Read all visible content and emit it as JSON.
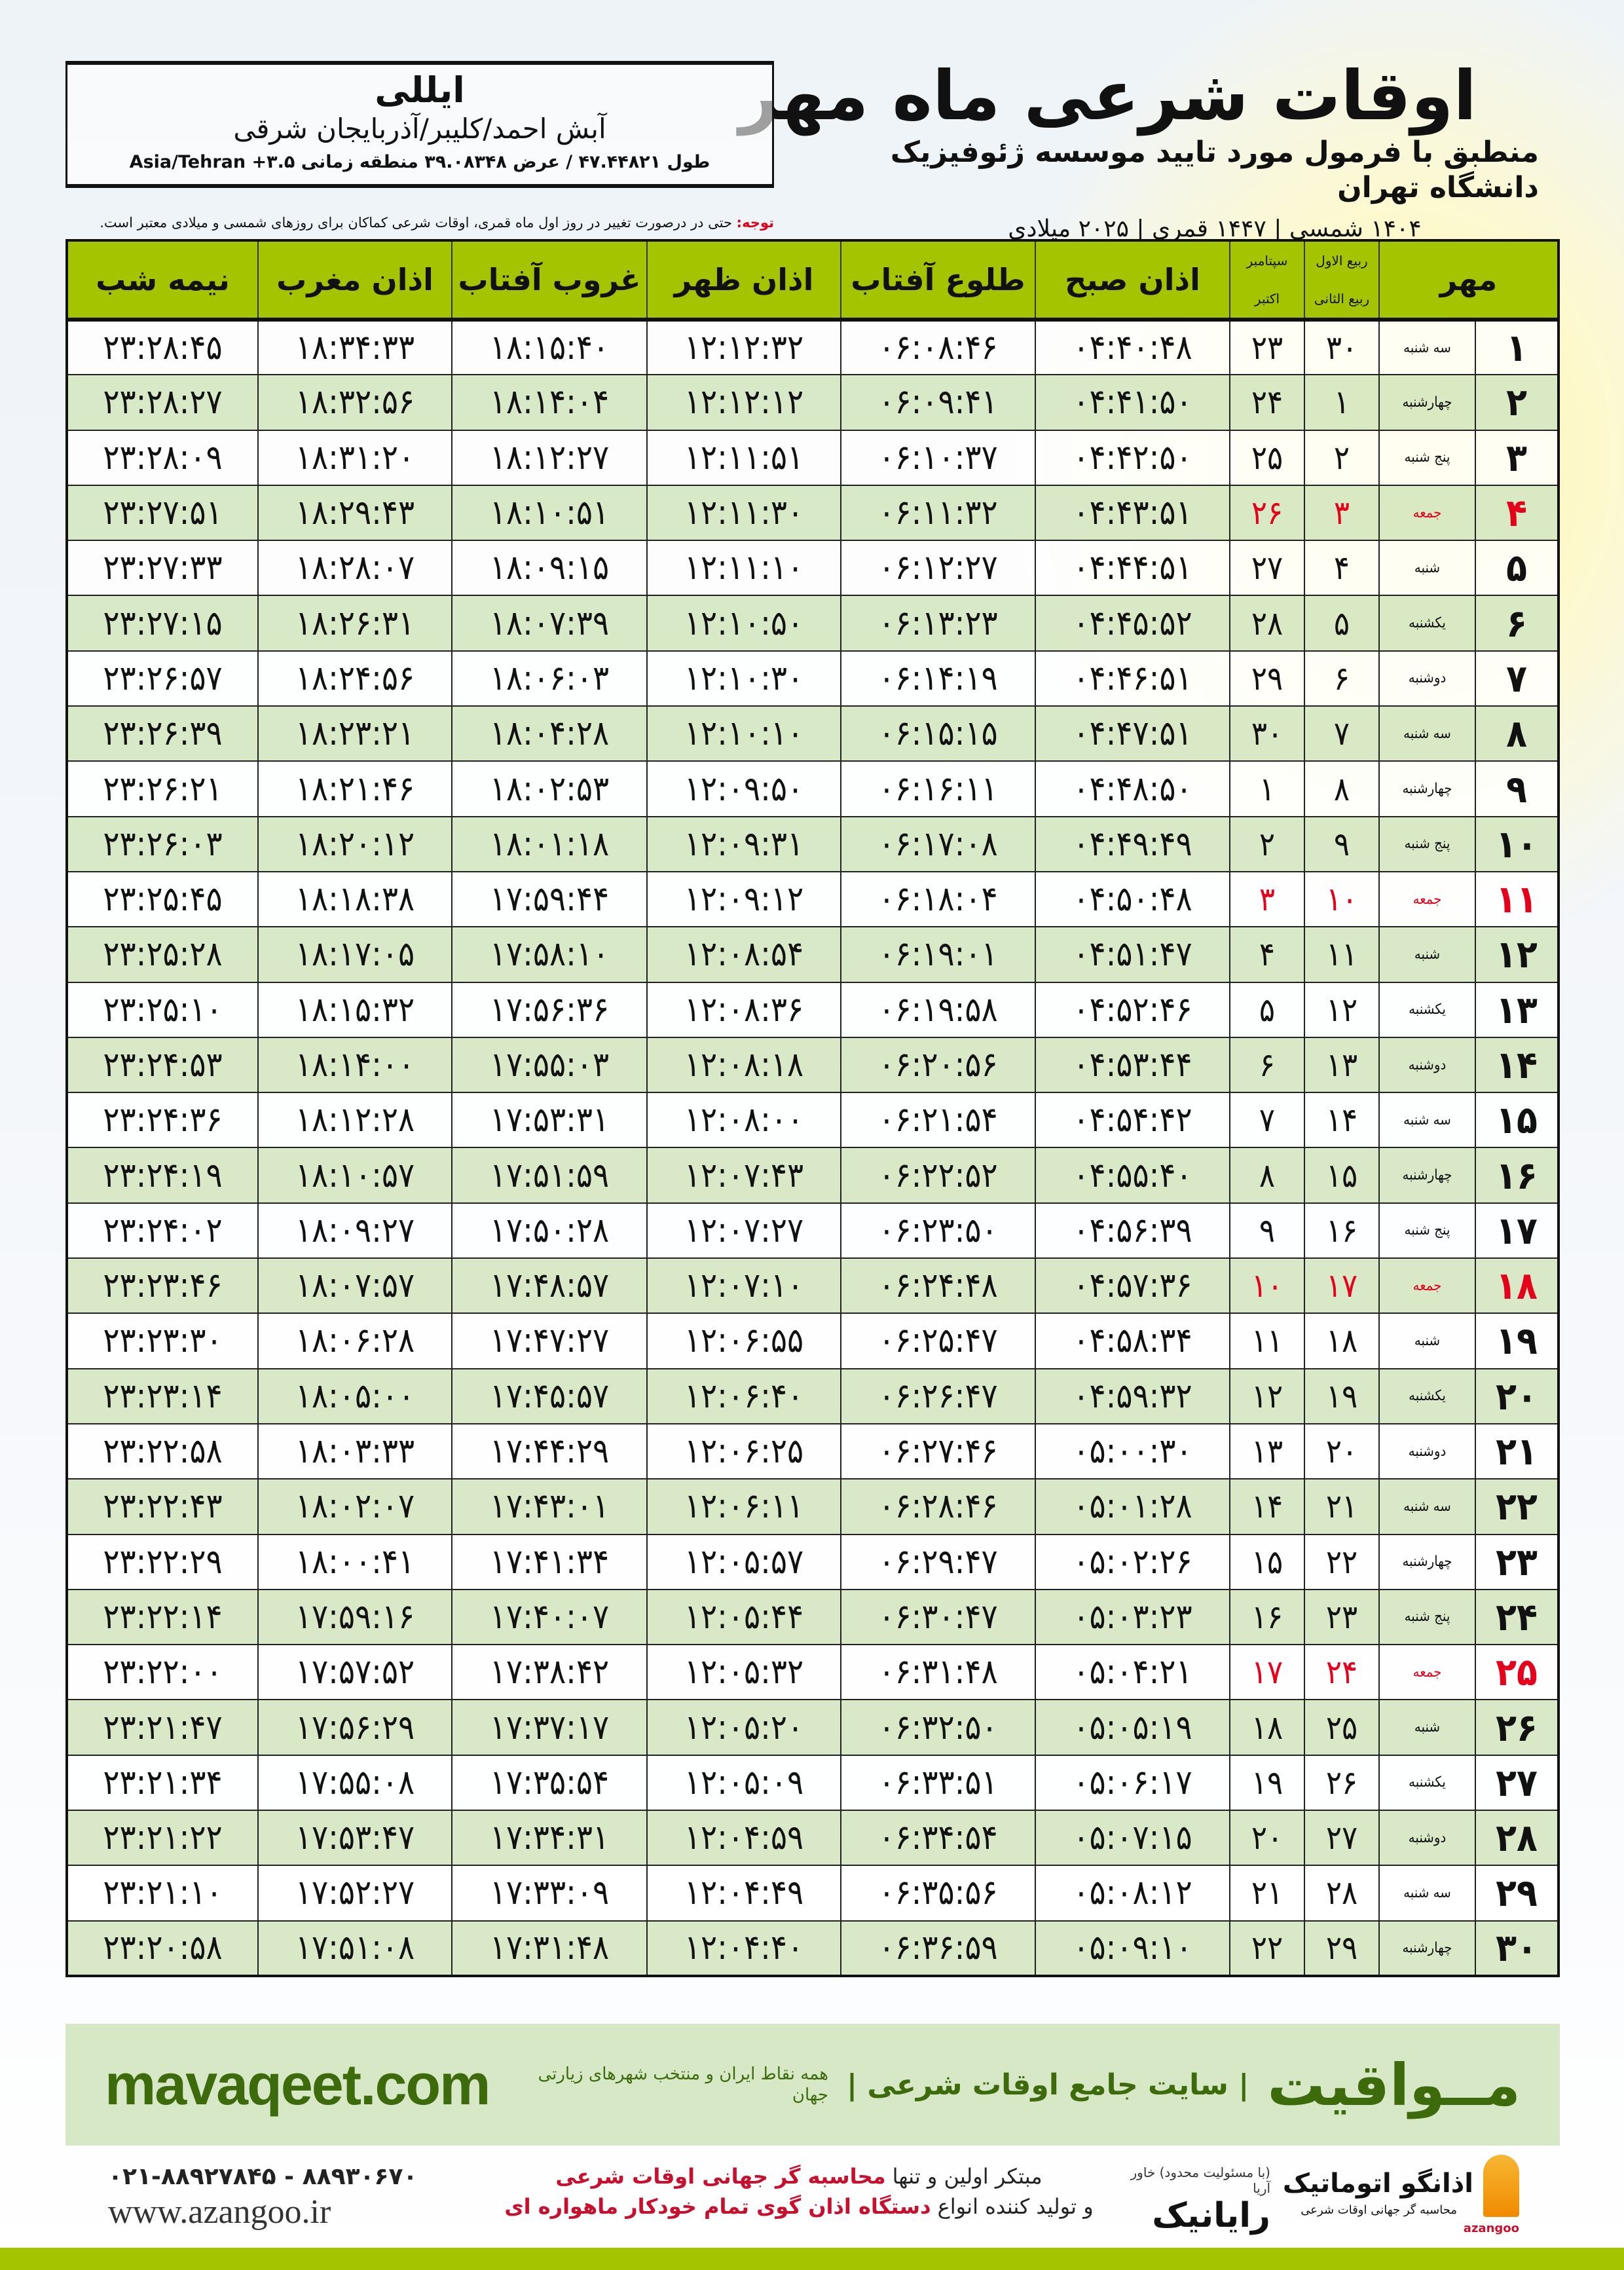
{
  "header": {
    "title": "اوقات شرعی ماه مهر",
    "subtitle": "منطبق با فرمول مورد تایید موسسه ژئوفیزیک دانشگاه تهران",
    "dates": "۱۴۰۴ شمسی | ۱۴۴۷ قمری | ۲۰۲۵ میلادی"
  },
  "location": {
    "city": "ایللی",
    "path": "آبش احمد/کلیبر/آذربایجان شرقی",
    "coords": "طول ۴۷.۴۴۸۲۱ / عرض ۳۹.۰۸۳۴۸ منطقه زمانی ۳.۵+ Asia/Tehran"
  },
  "note": {
    "label": "توجه:",
    "text": " حتی در درصورت تغییر در روز اول ماه قمری، اوقات شرعی کماکان برای روزهای شمسی و میلادی معتبر است."
  },
  "table": {
    "headers": {
      "month": "مهر",
      "qamari_top": "ربیع الاول",
      "qamari_bottom": "ربیع الثانی",
      "miladi_top": "سپتامبر",
      "miladi_bottom": "اکتبر",
      "subh": "اذان صبح",
      "tolu": "طلوع آفتاب",
      "zohr": "اذان ظهر",
      "ghorub": "غروب آفتاب",
      "maghrib": "اذان مغرب",
      "nimeh": "نیمه شب"
    },
    "friday_color": "#e5001b",
    "header_color": "#a4c400",
    "rows": [
      [
        "۱",
        "سه شنبه",
        "۳۰",
        "۲۳",
        "۰۴:۴۰:۴۸",
        "۰۶:۰۸:۴۶",
        "۱۲:۱۲:۳۲",
        "۱۸:۱۵:۴۰",
        "۱۸:۳۴:۳۳",
        "۲۳:۲۸:۴۵"
      ],
      [
        "۲",
        "چهارشنبه",
        "۱",
        "۲۴",
        "۰۴:۴۱:۵۰",
        "۰۶:۰۹:۴۱",
        "۱۲:۱۲:۱۲",
        "۱۸:۱۴:۰۴",
        "۱۸:۳۲:۵۶",
        "۲۳:۲۸:۲۷"
      ],
      [
        "۳",
        "پنج شنبه",
        "۲",
        "۲۵",
        "۰۴:۴۲:۵۰",
        "۰۶:۱۰:۳۷",
        "۱۲:۱۱:۵۱",
        "۱۸:۱۲:۲۷",
        "۱۸:۳۱:۲۰",
        "۲۳:۲۸:۰۹"
      ],
      [
        "۴",
        "جمعه",
        "۳",
        "۲۶",
        "۰۴:۴۳:۵۱",
        "۰۶:۱۱:۳۲",
        "۱۲:۱۱:۳۰",
        "۱۸:۱۰:۵۱",
        "۱۸:۲۹:۴۳",
        "۲۳:۲۷:۵۱"
      ],
      [
        "۵",
        "شنبه",
        "۴",
        "۲۷",
        "۰۴:۴۴:۵۱",
        "۰۶:۱۲:۲۷",
        "۱۲:۱۱:۱۰",
        "۱۸:۰۹:۱۵",
        "۱۸:۲۸:۰۷",
        "۲۳:۲۷:۳۳"
      ],
      [
        "۶",
        "یکشنبه",
        "۵",
        "۲۸",
        "۰۴:۴۵:۵۲",
        "۰۶:۱۳:۲۳",
        "۱۲:۱۰:۵۰",
        "۱۸:۰۷:۳۹",
        "۱۸:۲۶:۳۱",
        "۲۳:۲۷:۱۵"
      ],
      [
        "۷",
        "دوشنبه",
        "۶",
        "۲۹",
        "۰۴:۴۶:۵۱",
        "۰۶:۱۴:۱۹",
        "۱۲:۱۰:۳۰",
        "۱۸:۰۶:۰۳",
        "۱۸:۲۴:۵۶",
        "۲۳:۲۶:۵۷"
      ],
      [
        "۸",
        "سه شنبه",
        "۷",
        "۳۰",
        "۰۴:۴۷:۵۱",
        "۰۶:۱۵:۱۵",
        "۱۲:۱۰:۱۰",
        "۱۸:۰۴:۲۸",
        "۱۸:۲۳:۲۱",
        "۲۳:۲۶:۳۹"
      ],
      [
        "۹",
        "چهارشنبه",
        "۸",
        "۱",
        "۰۴:۴۸:۵۰",
        "۰۶:۱۶:۱۱",
        "۱۲:۰۹:۵۰",
        "۱۸:۰۲:۵۳",
        "۱۸:۲۱:۴۶",
        "۲۳:۲۶:۲۱"
      ],
      [
        "۱۰",
        "پنج شنبه",
        "۹",
        "۲",
        "۰۴:۴۹:۴۹",
        "۰۶:۱۷:۰۸",
        "۱۲:۰۹:۳۱",
        "۱۸:۰۱:۱۸",
        "۱۸:۲۰:۱۲",
        "۲۳:۲۶:۰۳"
      ],
      [
        "۱۱",
        "جمعه",
        "۱۰",
        "۳",
        "۰۴:۵۰:۴۸",
        "۰۶:۱۸:۰۴",
        "۱۲:۰۹:۱۲",
        "۱۷:۵۹:۴۴",
        "۱۸:۱۸:۳۸",
        "۲۳:۲۵:۴۵"
      ],
      [
        "۱۲",
        "شنبه",
        "۱۱",
        "۴",
        "۰۴:۵۱:۴۷",
        "۰۶:۱۹:۰۱",
        "۱۲:۰۸:۵۴",
        "۱۷:۵۸:۱۰",
        "۱۸:۱۷:۰۵",
        "۲۳:۲۵:۲۸"
      ],
      [
        "۱۳",
        "یکشنبه",
        "۱۲",
        "۵",
        "۰۴:۵۲:۴۶",
        "۰۶:۱۹:۵۸",
        "۱۲:۰۸:۳۶",
        "۱۷:۵۶:۳۶",
        "۱۸:۱۵:۳۲",
        "۲۳:۲۵:۱۰"
      ],
      [
        "۱۴",
        "دوشنبه",
        "۱۳",
        "۶",
        "۰۴:۵۳:۴۴",
        "۰۶:۲۰:۵۶",
        "۱۲:۰۸:۱۸",
        "۱۷:۵۵:۰۳",
        "۱۸:۱۴:۰۰",
        "۲۳:۲۴:۵۳"
      ],
      [
        "۱۵",
        "سه شنبه",
        "۱۴",
        "۷",
        "۰۴:۵۴:۴۲",
        "۰۶:۲۱:۵۴",
        "۱۲:۰۸:۰۰",
        "۱۷:۵۳:۳۱",
        "۱۸:۱۲:۲۸",
        "۲۳:۲۴:۳۶"
      ],
      [
        "۱۶",
        "چهارشنبه",
        "۱۵",
        "۸",
        "۰۴:۵۵:۴۰",
        "۰۶:۲۲:۵۲",
        "۱۲:۰۷:۴۳",
        "۱۷:۵۱:۵۹",
        "۱۸:۱۰:۵۷",
        "۲۳:۲۴:۱۹"
      ],
      [
        "۱۷",
        "پنج شنبه",
        "۱۶",
        "۹",
        "۰۴:۵۶:۳۹",
        "۰۶:۲۳:۵۰",
        "۱۲:۰۷:۲۷",
        "۱۷:۵۰:۲۸",
        "۱۸:۰۹:۲۷",
        "۲۳:۲۴:۰۲"
      ],
      [
        "۱۸",
        "جمعه",
        "۱۷",
        "۱۰",
        "۰۴:۵۷:۳۶",
        "۰۶:۲۴:۴۸",
        "۱۲:۰۷:۱۰",
        "۱۷:۴۸:۵۷",
        "۱۸:۰۷:۵۷",
        "۲۳:۲۳:۴۶"
      ],
      [
        "۱۹",
        "شنبه",
        "۱۸",
        "۱۱",
        "۰۴:۵۸:۳۴",
        "۰۶:۲۵:۴۷",
        "۱۲:۰۶:۵۵",
        "۱۷:۴۷:۲۷",
        "۱۸:۰۶:۲۸",
        "۲۳:۲۳:۳۰"
      ],
      [
        "۲۰",
        "یکشنبه",
        "۱۹",
        "۱۲",
        "۰۴:۵۹:۳۲",
        "۰۶:۲۶:۴۷",
        "۱۲:۰۶:۴۰",
        "۱۷:۴۵:۵۷",
        "۱۸:۰۵:۰۰",
        "۲۳:۲۳:۱۴"
      ],
      [
        "۲۱",
        "دوشنبه",
        "۲۰",
        "۱۳",
        "۰۵:۰۰:۳۰",
        "۰۶:۲۷:۴۶",
        "۱۲:۰۶:۲۵",
        "۱۷:۴۴:۲۹",
        "۱۸:۰۳:۳۳",
        "۲۳:۲۲:۵۸"
      ],
      [
        "۲۲",
        "سه شنبه",
        "۲۱",
        "۱۴",
        "۰۵:۰۱:۲۸",
        "۰۶:۲۸:۴۶",
        "۱۲:۰۶:۱۱",
        "۱۷:۴۳:۰۱",
        "۱۸:۰۲:۰۷",
        "۲۳:۲۲:۴۳"
      ],
      [
        "۲۳",
        "چهارشنبه",
        "۲۲",
        "۱۵",
        "۰۵:۰۲:۲۶",
        "۰۶:۲۹:۴۷",
        "۱۲:۰۵:۵۷",
        "۱۷:۴۱:۳۴",
        "۱۸:۰۰:۴۱",
        "۲۳:۲۲:۲۹"
      ],
      [
        "۲۴",
        "پنج شنبه",
        "۲۳",
        "۱۶",
        "۰۵:۰۳:۲۳",
        "۰۶:۳۰:۴۷",
        "۱۲:۰۵:۴۴",
        "۱۷:۴۰:۰۷",
        "۱۷:۵۹:۱۶",
        "۲۳:۲۲:۱۴"
      ],
      [
        "۲۵",
        "جمعه",
        "۲۴",
        "۱۷",
        "۰۵:۰۴:۲۱",
        "۰۶:۳۱:۴۸",
        "۱۲:۰۵:۳۲",
        "۱۷:۳۸:۴۲",
        "۱۷:۵۷:۵۲",
        "۲۳:۲۲:۰۰"
      ],
      [
        "۲۶",
        "شنبه",
        "۲۵",
        "۱۸",
        "۰۵:۰۵:۱۹",
        "۰۶:۳۲:۵۰",
        "۱۲:۰۵:۲۰",
        "۱۷:۳۷:۱۷",
        "۱۷:۵۶:۲۹",
        "۲۳:۲۱:۴۷"
      ],
      [
        "۲۷",
        "یکشنبه",
        "۲۶",
        "۱۹",
        "۰۵:۰۶:۱۷",
        "۰۶:۳۳:۵۱",
        "۱۲:۰۵:۰۹",
        "۱۷:۳۵:۵۴",
        "۱۷:۵۵:۰۸",
        "۲۳:۲۱:۳۴"
      ],
      [
        "۲۸",
        "دوشنبه",
        "۲۷",
        "۲۰",
        "۰۵:۰۷:۱۵",
        "۰۶:۳۴:۵۴",
        "۱۲:۰۴:۵۹",
        "۱۷:۳۴:۳۱",
        "۱۷:۵۳:۴۷",
        "۲۳:۲۱:۲۲"
      ],
      [
        "۲۹",
        "سه شنبه",
        "۲۸",
        "۲۱",
        "۰۵:۰۸:۱۲",
        "۰۶:۳۵:۵۶",
        "۱۲:۰۴:۴۹",
        "۱۷:۳۳:۰۹",
        "۱۷:۵۲:۲۷",
        "۲۳:۲۱:۱۰"
      ],
      [
        "۳۰",
        "چهارشنبه",
        "۲۹",
        "۲۲",
        "۰۵:۰۹:۱۰",
        "۰۶:۳۶:۵۹",
        "۱۲:۰۴:۴۰",
        "۱۷:۳۱:۴۸",
        "۱۷:۵۱:۰۸",
        "۲۳:۲۰:۵۸"
      ]
    ]
  },
  "banner": {
    "brand": "مــواقیت",
    "slogan": "| سایت جامع اوقات شرعی |",
    "sub": "همه نقاط ایران و منتخب شهرهای زیارتی جهان",
    "site": "mavaqeet.com",
    "color": "#3d6b0b"
  },
  "footer": {
    "phones": "۰۲۱-۸۸۹۲۷۸۴۵ - ۸۸۹۳۰۶۷۰",
    "web": "www.azangoo.ir",
    "promo1a": "مبتکر اولین و تنها ",
    "promo1b": "محاسبه گر جهانی اوقات شرعی",
    "promo2a": "و تولید کننده انواع ",
    "promo2b": "دستگاه اذان گوی تمام خودکار ماهواره ای",
    "logo2_name": "رایانیک",
    "logo2_sub": "(با مسئولیت محدود) خاور آریا",
    "logo1_name": "اذانگو اتوماتیک",
    "logo1_sub": "محاسبه گر جهانی اوقات شرعی",
    "logo1_en": "azangoo"
  }
}
